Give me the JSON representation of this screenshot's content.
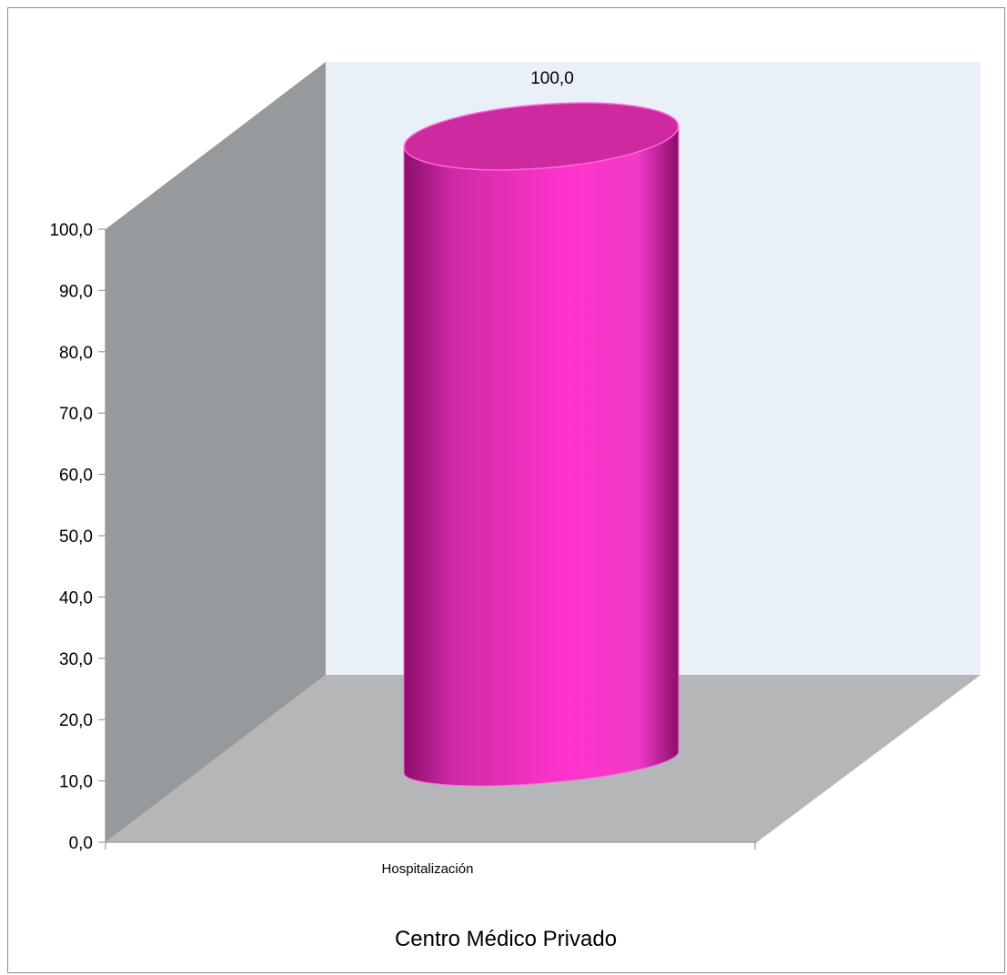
{
  "chart_data": {
    "type": "bar",
    "bar_shape": "cylinder-3d",
    "categories": [
      "Hospitalización"
    ],
    "values": [
      100.0
    ],
    "data_labels": [
      "100,0"
    ],
    "title": "Centro Médico Privado",
    "xlabel": "",
    "ylabel": "",
    "ylim": [
      0,
      100
    ],
    "yticks": [
      "0,0",
      "10,0",
      "20,0",
      "30,0",
      "40,0",
      "50,0",
      "60,0",
      "70,0",
      "80,0",
      "90,0",
      "100,0"
    ],
    "grid": false,
    "legend": "none",
    "colors": {
      "bar": "#ff33cc",
      "bar_dark": "#8a0f6a",
      "bar_top": "#cc2a9e",
      "back_wall": "#e9f0f8",
      "side_wall": "#979a9c",
      "floor": "#b4b6b8"
    }
  }
}
